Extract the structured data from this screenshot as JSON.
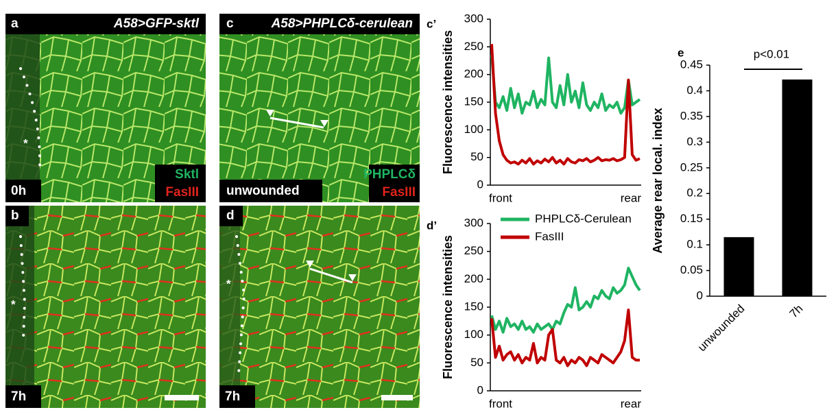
{
  "panels": [
    {
      "letter": "a",
      "title": "A58>GFP-sktl",
      "time": "0h",
      "markers": [
        "Sktl",
        "FasIII"
      ],
      "asterisk": "*"
    },
    {
      "letter": "b",
      "time": "7h",
      "asterisk": "*"
    },
    {
      "letter": "c",
      "title": "A58>PHPLCδ-cerulean",
      "time": "unwounded",
      "markers": [
        "PHPLCδ",
        "FasIII"
      ]
    },
    {
      "letter": "d",
      "time": "7h",
      "asterisk": "*"
    }
  ],
  "chart_data": [
    {
      "type": "line",
      "label": "c’",
      "ylabel": "Fluorescence intensities",
      "x_labels": [
        "front",
        "rear"
      ],
      "ylim": [
        0,
        300
      ],
      "yticks": [
        0,
        50,
        100,
        150,
        200,
        250,
        300
      ],
      "series": [
        {
          "color": "#1fb462",
          "values": [
            235,
            150,
            140,
            160,
            135,
            175,
            140,
            165,
            130,
            150,
            145,
            170,
            140,
            155,
            145,
            230,
            150,
            140,
            180,
            145,
            200,
            150,
            170,
            140,
            185,
            145,
            135,
            150,
            140,
            165,
            135,
            145,
            140,
            150,
            130,
            140,
            190,
            145,
            150,
            155
          ]
        },
        {
          "color": "#c00000",
          "values": [
            255,
            130,
            80,
            55,
            45,
            40,
            42,
            38,
            45,
            40,
            48,
            38,
            44,
            40,
            47,
            42,
            50,
            40,
            45,
            38,
            48,
            42,
            40,
            46,
            44,
            48,
            42,
            45,
            50,
            44,
            46,
            45,
            48,
            44,
            46,
            50,
            190,
            55,
            45,
            48
          ]
        }
      ]
    },
    {
      "type": "line",
      "label": "d’",
      "ylabel": "Fluorescence intensities",
      "x_labels": [
        "front",
        "rear"
      ],
      "ylim": [
        0,
        300
      ],
      "yticks": [
        0,
        50,
        100,
        150,
        200,
        250,
        300
      ],
      "series": [
        {
          "name": "PHPLCδ-Cerulean",
          "color": "#1fb462",
          "values": [
            135,
            110,
            125,
            105,
            130,
            115,
            120,
            110,
            125,
            110,
            115,
            105,
            120,
            110,
            115,
            120,
            110,
            125,
            120,
            140,
            155,
            150,
            185,
            145,
            150,
            160,
            150,
            170,
            165,
            180,
            170,
            165,
            185,
            175,
            180,
            190,
            220,
            205,
            190,
            180
          ]
        },
        {
          "name": "FasIII",
          "color": "#c00000",
          "values": [
            130,
            60,
            80,
            55,
            65,
            70,
            55,
            65,
            50,
            60,
            55,
            85,
            50,
            60,
            55,
            100,
            110,
            55,
            50,
            60,
            45,
            55,
            50,
            60,
            55,
            45,
            60,
            55,
            50,
            65,
            60,
            55,
            50,
            60,
            70,
            90,
            145,
            60,
            55,
            55
          ]
        }
      ]
    },
    {
      "type": "bar",
      "label": "e",
      "ylabel": "Average rear local. index",
      "annotation": "p<0.01",
      "categories": [
        "unwounded",
        "7h"
      ],
      "values": [
        0.115,
        0.422
      ],
      "color": "#000000",
      "ylim": [
        0,
        0.45
      ],
      "yticks": [
        0,
        0.05,
        0.1,
        0.15,
        0.2,
        0.25,
        0.3,
        0.35,
        0.4,
        0.45
      ]
    }
  ]
}
